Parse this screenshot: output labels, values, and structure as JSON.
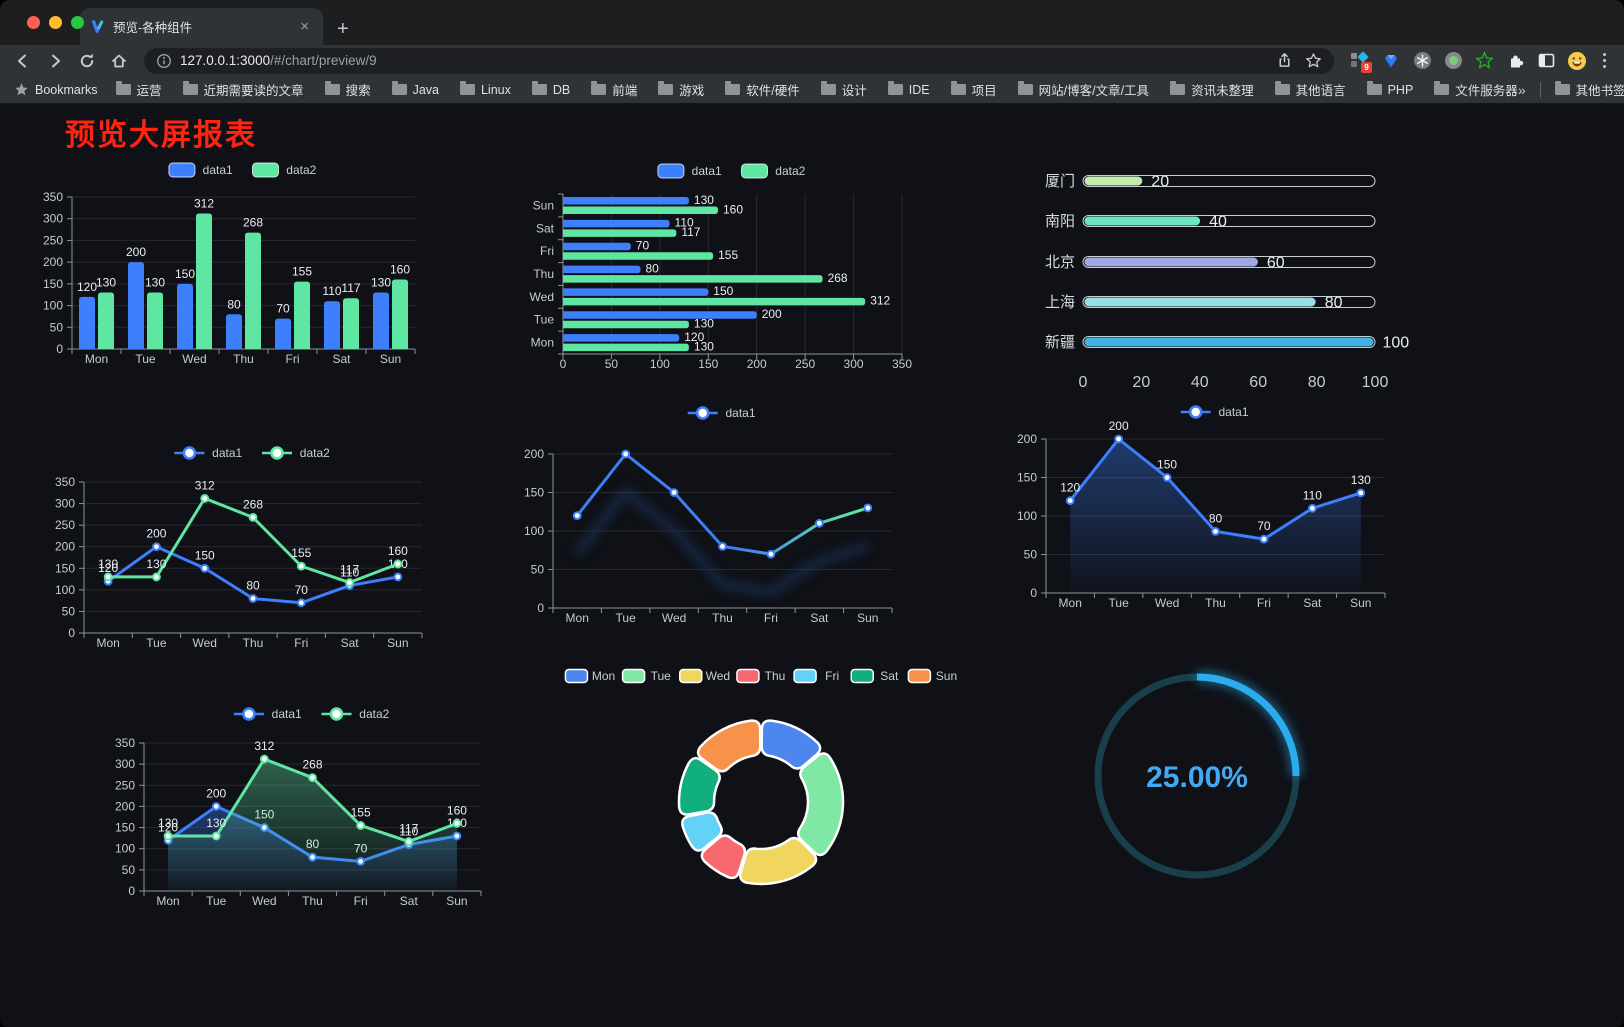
{
  "browser": {
    "tab": {
      "title": "预览-各种组件",
      "close": "×",
      "new_tab": "+"
    },
    "url": {
      "host": "127.0.0.1:3000",
      "path": "/#/chart/preview/9"
    },
    "extensions_badge": "9",
    "bookmarks_bar": {
      "label": "Bookmarks",
      "folders": [
        "运营",
        "近期需要读的文章",
        "搜索",
        "Java",
        "Linux",
        "DB",
        "前端",
        "游戏",
        "软件/硬件",
        "设计",
        "IDE",
        "项目",
        "网站/博客/文章/工具",
        "资讯未整理",
        "其他语言",
        "PHP",
        "文件服务器"
      ],
      "overflow": "»",
      "other_bookmarks": "其他书签"
    }
  },
  "page": {
    "title": "预览大屏报表",
    "title_color": "#ff2412"
  },
  "chart_data": [
    {
      "id": "c1",
      "type": "bar",
      "legend_position": "top",
      "grid": true,
      "categories": [
        "Mon",
        "Tue",
        "Wed",
        "Thu",
        "Fri",
        "Sat",
        "Sun"
      ],
      "series": [
        {
          "name": "data1",
          "color": "#3D7FFC",
          "values": [
            120,
            200,
            150,
            80,
            70,
            110,
            130
          ]
        },
        {
          "name": "data2",
          "color": "#5FE6A2",
          "values": [
            130,
            130,
            312,
            268,
            155,
            117,
            160
          ]
        }
      ],
      "ylim": [
        0,
        350
      ],
      "ytick_step": 50
    },
    {
      "id": "c2",
      "type": "bar-horizontal",
      "legend_position": "top",
      "grid": true,
      "categories": [
        "Mon",
        "Tue",
        "Wed",
        "Thu",
        "Fri",
        "Sat",
        "Sun"
      ],
      "series": [
        {
          "name": "data1",
          "color": "#3D7FFC",
          "values": [
            120,
            200,
            150,
            80,
            70,
            110,
            130
          ]
        },
        {
          "name": "data2",
          "color": "#5FE6A2",
          "values": [
            130,
            130,
            312,
            268,
            155,
            117,
            160
          ]
        }
      ],
      "xlim": [
        0,
        350
      ],
      "xtick_step": 50
    },
    {
      "id": "c3",
      "type": "progress-bars",
      "items": [
        {
          "label": "厦门",
          "value": 20,
          "color": "#c4ebad"
        },
        {
          "label": "南阳",
          "value": 40,
          "color": "#6be6c1"
        },
        {
          "label": "北京",
          "value": 60,
          "color": "#a0a7e6"
        },
        {
          "label": "上海",
          "value": 80,
          "color": "#96dee8"
        },
        {
          "label": "新疆",
          "value": 100,
          "color": "#3fb1e3"
        }
      ],
      "xlim": [
        0,
        100
      ],
      "xticks": [
        0,
        20,
        40,
        60,
        80,
        100
      ]
    },
    {
      "id": "c4",
      "type": "line",
      "legend_position": "top",
      "labels": true,
      "categories": [
        "Mon",
        "Tue",
        "Wed",
        "Thu",
        "Fri",
        "Sat",
        "Sun"
      ],
      "series": [
        {
          "name": "data1",
          "color": "#3D7FFC",
          "values": [
            120,
            200,
            150,
            80,
            70,
            110,
            130
          ]
        },
        {
          "name": "data2",
          "color": "#5FE6A2",
          "values": [
            130,
            130,
            312,
            268,
            155,
            117,
            160
          ]
        }
      ],
      "ylim": [
        0,
        350
      ],
      "ytick_step": 50
    },
    {
      "id": "c5",
      "type": "line",
      "legend_position": "top",
      "labels": false,
      "shadow": true,
      "categories": [
        "Mon",
        "Tue",
        "Wed",
        "Thu",
        "Fri",
        "Sat",
        "Sun"
      ],
      "series": [
        {
          "name": "data1",
          "color": "#3D7FFC",
          "gradient": [
            "#3E7EF7",
            "#5FE5A0"
          ],
          "values": [
            120,
            200,
            150,
            80,
            70,
            110,
            130
          ]
        }
      ],
      "ylim": [
        0,
        200
      ],
      "ytick_step": 50
    },
    {
      "id": "c6",
      "type": "line",
      "legend_position": "top",
      "labels": true,
      "categories": [
        "Mon",
        "Tue",
        "Wed",
        "Thu",
        "Fri",
        "Sat",
        "Sun"
      ],
      "series": [
        {
          "name": "data1",
          "color": "#3D7FFC",
          "area": true,
          "values": [
            120,
            200,
            150,
            80,
            70,
            110,
            130
          ]
        }
      ],
      "ylim": [
        0,
        200
      ],
      "ytick_step": 50
    },
    {
      "id": "c7",
      "type": "line",
      "legend_position": "top",
      "labels": true,
      "categories": [
        "Mon",
        "Tue",
        "Wed",
        "Thu",
        "Fri",
        "Sat",
        "Sun"
      ],
      "series": [
        {
          "name": "data1",
          "color": "#3D7FFC",
          "area": true,
          "values": [
            120,
            200,
            150,
            80,
            70,
            110,
            130
          ]
        },
        {
          "name": "data2",
          "color": "#5FE6A2",
          "area": true,
          "values": [
            130,
            130,
            312,
            268,
            155,
            117,
            160
          ]
        }
      ],
      "ylim": [
        0,
        350
      ],
      "ytick_step": 50
    },
    {
      "id": "c8",
      "type": "pie",
      "legend_position": "top",
      "donut": true,
      "items": [
        {
          "label": "Mon",
          "value": 120,
          "color": "#4D87EE"
        },
        {
          "label": "Tue",
          "value": 200,
          "color": "#80E8A5"
        },
        {
          "label": "Wed",
          "value": 150,
          "color": "#F0D65E"
        },
        {
          "label": "Thu",
          "value": 80,
          "color": "#F5696F"
        },
        {
          "label": "Fri",
          "value": 70,
          "color": "#64D1F6"
        },
        {
          "label": "Sat",
          "value": 110,
          "color": "#10AF7D"
        },
        {
          "label": "Sun",
          "value": 130,
          "color": "#F69249"
        }
      ]
    },
    {
      "id": "c9",
      "type": "gauge",
      "percent": 25,
      "label": "25.00%",
      "color": "#2BACEE",
      "track_color": "#1A3F4C",
      "text_color": "#44A9F1"
    }
  ]
}
